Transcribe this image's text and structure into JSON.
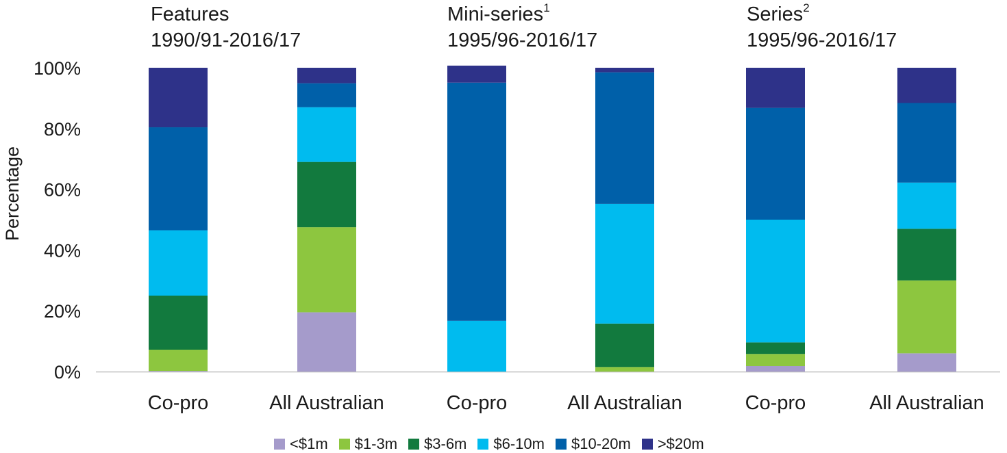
{
  "chart_data": {
    "type": "bar",
    "stacked": true,
    "ylabel": "Percentage",
    "ylim": [
      0,
      100
    ],
    "yticks": [
      "0%",
      "20%",
      "40%",
      "60%",
      "80%",
      "100%"
    ],
    "grid": false,
    "legend_position": "bottom",
    "groups": [
      {
        "title": "Features",
        "superscript": "",
        "subtitle": "1990/91-2016/17",
        "categories": [
          "Co-pro",
          "All Australian"
        ]
      },
      {
        "title": "Mini-series",
        "superscript": "1",
        "subtitle": "1995/96-2016/17",
        "categories": [
          "Co-pro",
          "All Australian"
        ]
      },
      {
        "title": "Series",
        "superscript": "2",
        "subtitle": "1995/96-2016/17",
        "categories": [
          "Co-pro",
          "All Australian"
        ]
      }
    ],
    "categories": [
      "Co-pro",
      "All Australian",
      "Co-pro",
      "All Australian",
      "Co-pro",
      "All Australian"
    ],
    "series": [
      {
        "name": "<$1m",
        "color": "#a59bcb",
        "values": [
          0.2,
          19.5,
          0,
          0,
          1.8,
          6.0
        ]
      },
      {
        "name": "$1-3m",
        "color": "#8dc63f",
        "values": [
          7.0,
          28.0,
          0,
          1.5,
          4.0,
          24.0
        ]
      },
      {
        "name": "$3-6m",
        "color": "#127a3e",
        "values": [
          17.8,
          21.5,
          0,
          14.3,
          3.8,
          17.0
        ]
      },
      {
        "name": "$6-10m",
        "color": "#00bbef",
        "values": [
          21.5,
          18.0,
          16.7,
          39.4,
          40.4,
          15.2
        ]
      },
      {
        "name": "$10-20m",
        "color": "#0060a9",
        "values": [
          33.9,
          7.9,
          78.4,
          43.3,
          36.8,
          26.2
        ]
      },
      {
        "name": ">$20m",
        "color": "#2e3289",
        "values": [
          19.6,
          5.1,
          5.6,
          1.5,
          13.2,
          11.6
        ]
      }
    ]
  }
}
